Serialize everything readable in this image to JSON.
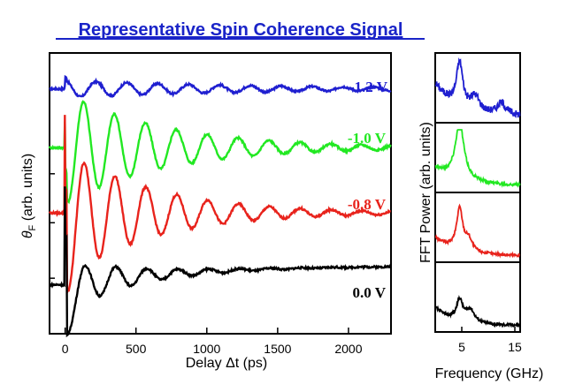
{
  "title": "Representative Spin Coherence Signal",
  "chart_data": [
    {
      "type": "line",
      "xlabel": "Delay Δt (ps)",
      "ylabel": "θF (arb. units)",
      "ylabel_main": "θ",
      "ylabel_sub": "F",
      "ylabel_rest": " (arb. units)",
      "xlim": [
        -110,
        2300
      ],
      "xticks": [
        0,
        500,
        1000,
        1500,
        2000
      ],
      "xtick_labels": [
        "0",
        "500",
        "1000",
        "1500",
        "2000"
      ],
      "series": [
        {
          "name": "-1.2 V",
          "color": "#1f1fd0",
          "offset": 3,
          "amp": 0.13,
          "tau": 1400,
          "period": 218,
          "phase": 0.0,
          "spike": 0.05
        },
        {
          "name": "-1.0 V",
          "color": "#22e822",
          "offset": 2.1,
          "amp": 0.85,
          "tau": 700,
          "period": 218,
          "phase": 2.5,
          "spike": 0.4
        },
        {
          "name": "-0.8 V",
          "color": "#e8231c",
          "offset": 1.1,
          "amp": 1.0,
          "tau": 620,
          "period": 218,
          "phase": 2.4,
          "spike": 1.5
        },
        {
          "name": "0.0 V",
          "color": "#000000",
          "offset": 0,
          "amp": 0.42,
          "tau": 420,
          "period": 218,
          "phase": 2.2,
          "spike": 1.5
        }
      ]
    },
    {
      "type": "line",
      "xlabel": "Frequency (GHz)",
      "ylabel": "FFT Power (arb. units)",
      "xlim": [
        0,
        16
      ],
      "xticks": [
        5,
        15
      ],
      "xtick_labels": [
        "5",
        "15"
      ],
      "series": [
        {
          "color": "#1f1fd0",
          "peaks": [
            {
              "f": 4.6,
              "h": 0.75,
              "w": 0.7
            },
            {
              "f": 7.5,
              "h": 0.25,
              "w": 1.0
            },
            {
              "f": 12.5,
              "h": 0.2,
              "w": 1.0
            }
          ],
          "base": 0.55,
          "decay": 0.25
        },
        {
          "color": "#22e822",
          "peaks": [
            {
              "f": 4.6,
              "h": 0.95,
              "w": 1.0
            }
          ],
          "base": 0.3,
          "decay": 0.2
        },
        {
          "color": "#e8231c",
          "peaks": [
            {
              "f": 4.6,
              "h": 0.7,
              "w": 0.7
            },
            {
              "f": 6.3,
              "h": 0.2,
              "w": 0.8
            }
          ],
          "base": 0.3,
          "decay": 0.25
        },
        {
          "color": "#000000",
          "peaks": [
            {
              "f": 4.6,
              "h": 0.35,
              "w": 0.7
            },
            {
              "f": 6.6,
              "h": 0.22,
              "w": 1.0
            }
          ],
          "base": 0.3,
          "decay": 0.3
        }
      ]
    }
  ]
}
